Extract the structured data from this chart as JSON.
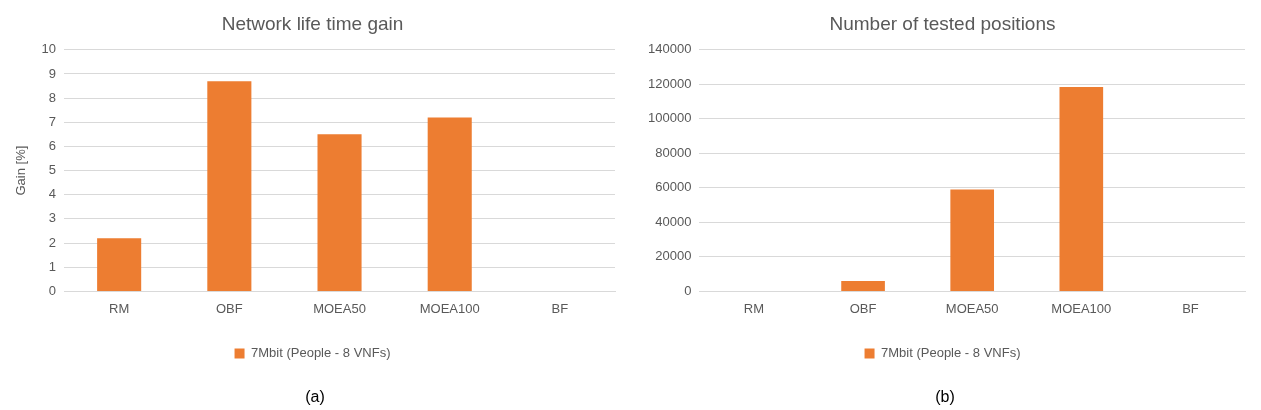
{
  "chart_data": [
    {
      "type": "bar",
      "title": "Network life time gain",
      "ylabel": "Gain [%]",
      "categories": [
        "RM",
        "OBF",
        "MOEA50",
        "MOEA100",
        "BF"
      ],
      "series": [
        {
          "name": "7Mbit (People - 8 VNFs)",
          "color": "#ed7d31",
          "values": [
            2.2,
            8.7,
            6.5,
            7.2,
            null
          ]
        }
      ],
      "ylim": [
        0,
        10
      ],
      "yticks": [
        0,
        1,
        2,
        3,
        4,
        5,
        6,
        7,
        8,
        9,
        10
      ],
      "grid": "y",
      "legend": "bottom",
      "annotations": [
        "(a)"
      ]
    },
    {
      "type": "bar",
      "title": "Number of tested positions",
      "categories": [
        "RM",
        "OBF",
        "MOEA50",
        "MOEA100",
        "BF"
      ],
      "series": [
        {
          "name": "7Mbit (People - 8 VNFs)",
          "color": "#ed7d31",
          "values": [
            null,
            6000,
            59000,
            118500,
            null
          ]
        }
      ],
      "ylim": [
        0,
        140000
      ],
      "yticks": [
        0,
        20000,
        40000,
        60000,
        80000,
        100000,
        120000,
        140000
      ],
      "grid": "y",
      "legend": "bottom",
      "annotations": [
        "(b)"
      ]
    }
  ]
}
